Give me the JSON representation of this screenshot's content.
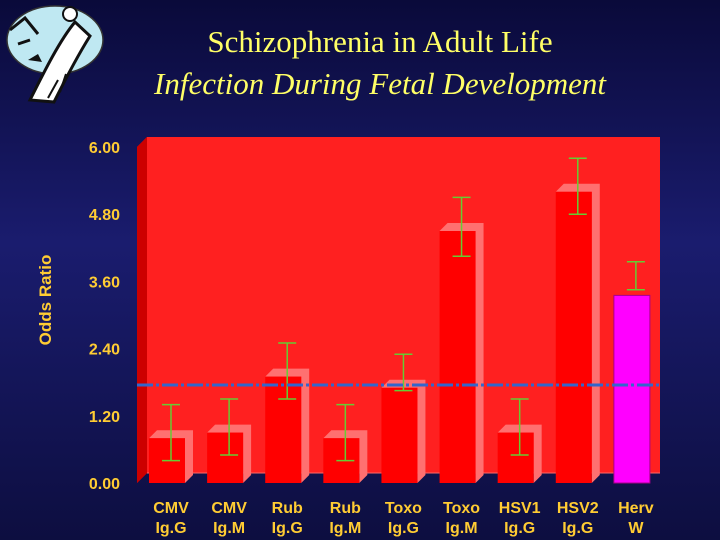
{
  "header": {
    "title_line1": "Schizophrenia in Adult Life",
    "title_line2": "Infection During Fetal Development"
  },
  "colors": {
    "title": "#ffff66",
    "axis_text": "#ffcc33",
    "bar": "#ff0000",
    "bar_highlight": "#ff00ff",
    "error": "#66cc33",
    "reference_line": "#3366cc"
  },
  "logo": {
    "icon": "cartoon-logo-icon"
  },
  "chart_data": {
    "type": "bar",
    "title": "Schizophrenia in Adult Life Infection During Fetal Development",
    "xlabel": "",
    "ylabel": "Odds Ratio",
    "ylim": [
      0,
      6
    ],
    "yticks": [
      "0.00",
      "1.20",
      "2.40",
      "3.60",
      "4.80",
      "6.00"
    ],
    "grid": false,
    "reference_line": 1.75,
    "categories": [
      [
        "CMV",
        "Ig.G"
      ],
      [
        "CMV",
        "Ig.M"
      ],
      [
        "Rub",
        "Ig.G"
      ],
      [
        "Rub",
        "Ig.M"
      ],
      [
        "Toxo",
        "Ig.G"
      ],
      [
        "Toxo",
        "Ig.M"
      ],
      [
        "HSV1",
        "Ig.G"
      ],
      [
        "HSV2",
        "Ig.G"
      ],
      [
        "Herv",
        "W"
      ]
    ],
    "values": [
      0.8,
      0.9,
      1.9,
      0.8,
      1.7,
      4.5,
      0.9,
      5.2,
      3.35
    ],
    "error_upper": [
      1.4,
      1.5,
      2.5,
      1.4,
      2.3,
      5.1,
      1.5,
      5.8,
      3.95
    ],
    "error_lower": [
      0.4,
      0.5,
      1.5,
      0.4,
      1.65,
      4.05,
      0.5,
      4.8,
      3.45
    ],
    "highlight_index": 8
  }
}
